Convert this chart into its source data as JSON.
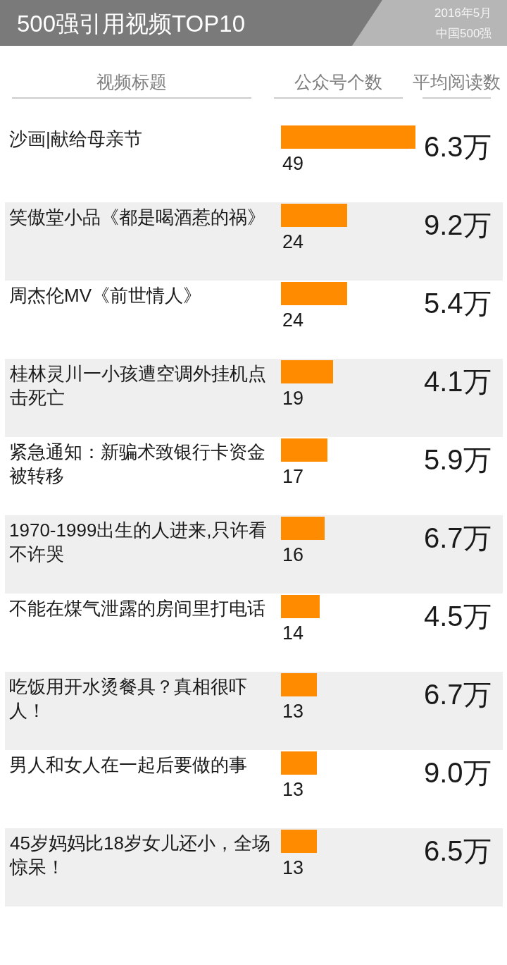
{
  "chart_data": [
    {
      "type": "bar",
      "orientation": "horizontal",
      "title": "500强引用视频TOP10",
      "annotations": [
        "2016年5月",
        "中国500强"
      ],
      "ylabel": "视频标题",
      "xlabel": "公众号个数",
      "categories": [
        "沙画|献给母亲节",
        "笑傲堂小品《都是喝酒惹的祸》",
        "周杰伦MV《前世情人》",
        "桂林灵川一小孩遭空调外挂机点击死亡",
        "紧急通知：新骗术致银行卡资金被转移",
        "1970-1999出生的人进来,只许看不许哭",
        "不能在煤气泄露的房间里打电话",
        "吃饭用开水烫餐具？真相很吓人！",
        "男人和女人在一起后要做的事",
        "45岁妈妈比18岁女儿还小，全场惊呆！"
      ],
      "values": [
        49,
        24,
        24,
        19,
        17,
        16,
        14,
        13,
        13,
        13
      ],
      "color": "#ff8c00",
      "data_labels": true,
      "tick_labels": "y"
    },
    {
      "type": "other",
      "title": "平均阅读数",
      "annotations": [
        "6.3万",
        "9.2万",
        "5.4万",
        "4.1万",
        "5.9万",
        "6.7万",
        "4.5万",
        "6.7万",
        "9.0万",
        "6.5万"
      ]
    }
  ]
}
